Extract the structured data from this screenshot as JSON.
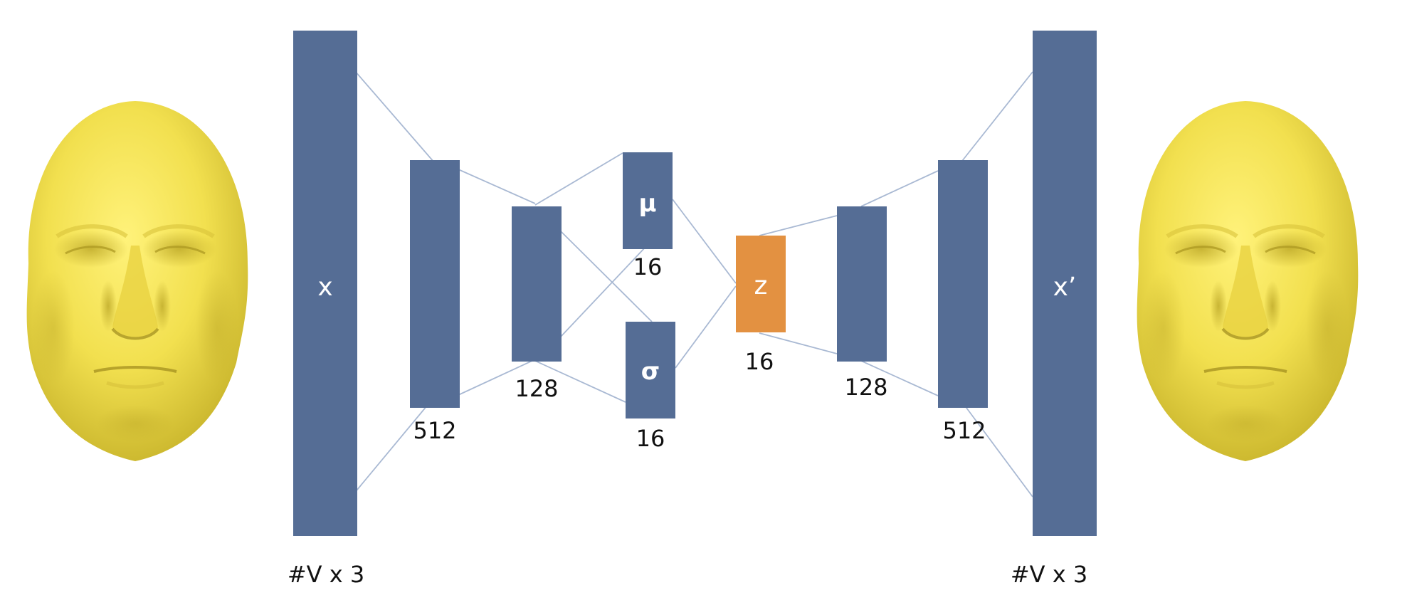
{
  "colors": {
    "layer_fill": "#556d95",
    "latent_fill": "#e39141",
    "connection": "#a9b9d3",
    "face_skin": "#f2e04f",
    "text_dark": "#111111",
    "text_light": "#ffffff"
  },
  "input_face": {
    "icon": "face-mesh-icon"
  },
  "output_face": {
    "icon": "face-mesh-icon"
  },
  "encoder": {
    "input": {
      "label": "x",
      "dim": "#V x 3"
    },
    "hidden1": {
      "dim": "512"
    },
    "hidden2": {
      "dim": "128"
    },
    "mu": {
      "label": "μ",
      "dim": "16"
    },
    "sigma": {
      "label": "σ",
      "dim": "16"
    }
  },
  "latent": {
    "label": "z",
    "dim": "16"
  },
  "decoder": {
    "hidden1": {
      "dim": "128"
    },
    "hidden2": {
      "dim": "512"
    },
    "output": {
      "label": "x’",
      "dim": "#V x 3"
    }
  }
}
